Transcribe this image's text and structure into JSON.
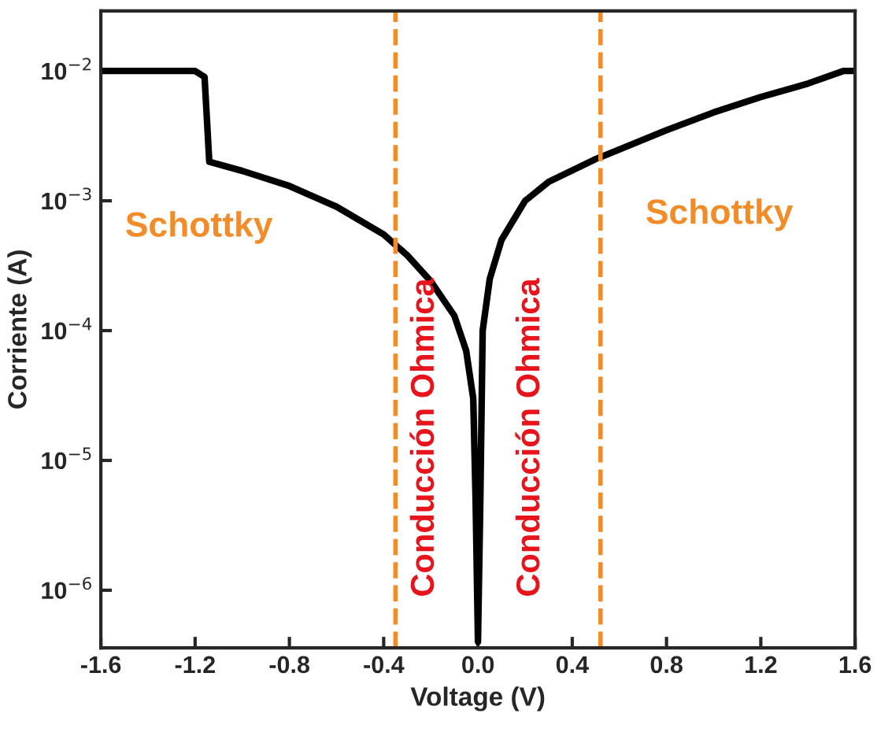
{
  "chart_data": {
    "type": "line",
    "xlabel": "Voltage (V)",
    "ylabel": "Corriente (A)",
    "log": "y",
    "xlim": [
      -1.6,
      1.6
    ],
    "xticks": [
      -1.6,
      -1.2,
      -0.8,
      -0.4,
      {
        "value": 0,
        "label": "0.0"
      },
      0.4,
      0.8,
      1.2,
      1.6
    ],
    "ylim": [
      3.6e-07,
      0.029
    ],
    "yticks": [
      {
        "value": 1e-06,
        "label": "10$^{−6}$"
      },
      {
        "value": 1e-05,
        "label": "10$^{−5}$"
      },
      {
        "value": 0.0001,
        "label": "10$^{−4}$"
      },
      {
        "value": 0.001,
        "label": "10$^{−3}$"
      },
      {
        "value": 0.01,
        "label": "10$^{−2}$"
      }
    ],
    "grid": false,
    "line_style": "solid",
    "marker": "none",
    "x": [
      -1.6,
      -1.2,
      -1.16,
      -1.14,
      -1.0,
      -0.8,
      -0.6,
      -0.4,
      -0.3,
      -0.2,
      -0.1,
      -0.05,
      -0.02,
      -0.01,
      0.0,
      0.01,
      0.02,
      0.05,
      0.1,
      0.2,
      0.3,
      0.5,
      0.8,
      1.0,
      1.2,
      1.4,
      1.55,
      1.6
    ],
    "series": [
      {
        "color": "#000000",
        "values": [
          0.01,
          0.01,
          0.009,
          0.002,
          0.0017,
          0.0013,
          0.0009,
          0.00055,
          0.00038,
          0.00024,
          0.00013,
          7e-05,
          3e-05,
          5e-06,
          4e-07,
          5e-06,
          0.0001,
          0.00025,
          0.0005,
          0.001,
          0.0014,
          0.0021,
          0.0035,
          0.0048,
          0.0063,
          0.008,
          0.01,
          0.01
        ]
      }
    ],
    "ref_lines": [
      {
        "axis": "x",
        "value": -0.35,
        "color": "#f28c28",
        "line_style": "dashed"
      },
      {
        "axis": "x",
        "value": 0.52,
        "color": "#f28c28",
        "line_style": "dashed"
      }
    ],
    "annotations": [
      "Schottky",
      "Conducción Ohmica",
      "Conducción Ohmica",
      "Schottky"
    ]
  }
}
